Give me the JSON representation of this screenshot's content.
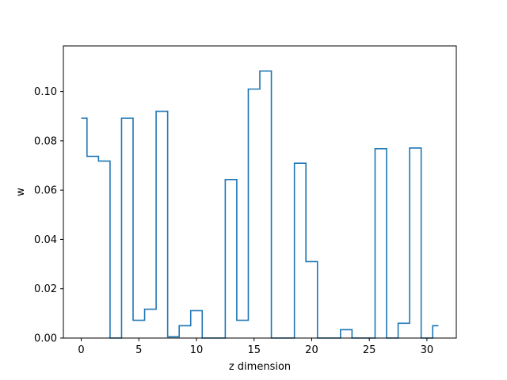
{
  "chart_data": {
    "type": "line",
    "drawstyle": "steps-mid",
    "title": "",
    "xlabel": "z dimension",
    "ylabel": "w",
    "xlim": [
      -1.55,
      32.55
    ],
    "ylim": [
      0,
      0.1185
    ],
    "x_ticks": [
      0,
      5,
      10,
      15,
      20,
      25,
      30
    ],
    "y_ticks": [
      0.0,
      0.02,
      0.04,
      0.06,
      0.08,
      0.1
    ],
    "y_tick_labels": [
      "0.00",
      "0.02",
      "0.04",
      "0.06",
      "0.08",
      "0.10"
    ],
    "grid": false,
    "legend": "none",
    "series_color": "#1f77b4",
    "x": [
      0,
      1,
      2,
      3,
      4,
      5,
      6,
      7,
      8,
      9,
      10,
      11,
      12,
      13,
      14,
      15,
      16,
      17,
      18,
      19,
      20,
      21,
      22,
      23,
      24,
      25,
      26,
      27,
      28,
      29,
      30,
      31
    ],
    "values": [
      0.0892,
      0.0737,
      0.0718,
      0.0,
      0.0892,
      0.0072,
      0.0117,
      0.092,
      0.0005,
      0.005,
      0.0111,
      0.0,
      0.0,
      0.0643,
      0.0072,
      0.101,
      0.1083,
      0.0,
      0.0,
      0.0709,
      0.031,
      0.0,
      0.0,
      0.0034,
      0.0,
      0.0,
      0.0768,
      0.0,
      0.006,
      0.0771,
      0.0,
      0.005
    ]
  }
}
